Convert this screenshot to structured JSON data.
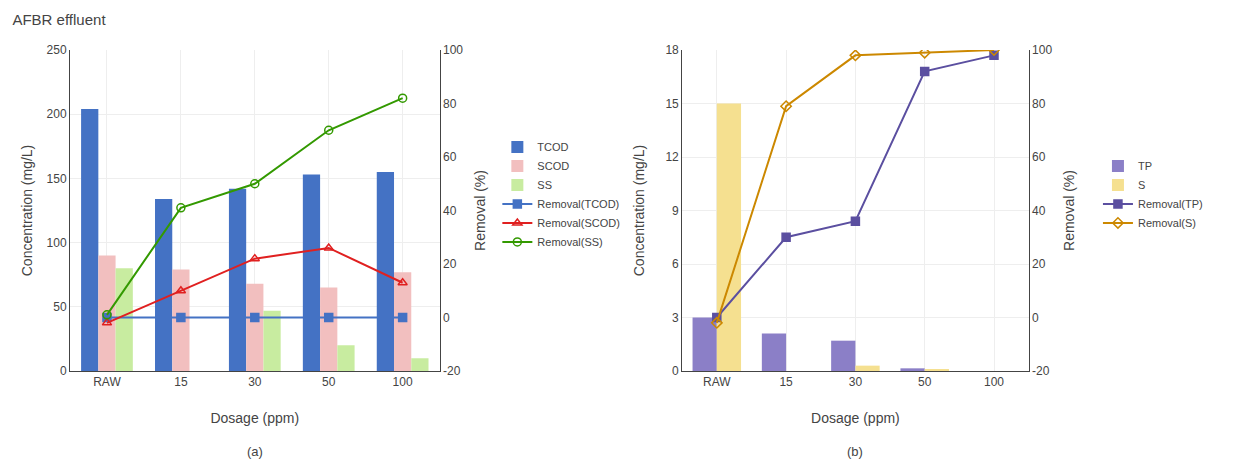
{
  "chart_data": [
    {
      "type": "bar",
      "title": "AFBR effluent",
      "categories": [
        "RAW",
        "15",
        "30",
        "50",
        "100"
      ],
      "xlabel": "Dosage (ppm)",
      "ylabel": "Concentration (mg/L)",
      "y2label": "Removal (%)",
      "ylim": [
        0,
        250
      ],
      "yticks": [
        0,
        50,
        100,
        150,
        200,
        250
      ],
      "y2lim": [
        -20,
        100
      ],
      "y2ticks": [
        -20,
        0,
        20,
        40,
        60,
        80,
        100
      ],
      "grid": true,
      "legend": "right",
      "annotations": [
        "(a)"
      ],
      "series": [
        {
          "name": "TCOD",
          "type": "bar",
          "color": "#4472C4",
          "values": [
            204,
            134,
            142,
            153,
            155
          ]
        },
        {
          "name": "SCOD",
          "type": "bar",
          "color": "#F2BFBF",
          "values": [
            90,
            79,
            68,
            65,
            77
          ]
        },
        {
          "name": "SS",
          "type": "bar",
          "color": "#C8ECA0",
          "values": [
            80,
            0,
            47,
            20,
            10
          ]
        },
        {
          "name": "Removal(TCOD)",
          "type": "line",
          "axis": "y2",
          "color": "#4472C4",
          "marker": "square",
          "values": [
            0,
            0,
            0,
            0,
            0
          ]
        },
        {
          "name": "Removal(SCOD)",
          "type": "line",
          "axis": "y2",
          "color": "#E02020",
          "marker": "triangle-up-open",
          "values": [
            -2,
            10,
            22,
            26,
            13
          ]
        },
        {
          "name": "Removal(SS)",
          "type": "line",
          "axis": "y2",
          "color": "#339900",
          "marker": "circle-open",
          "values": [
            1,
            41,
            50,
            70,
            82
          ]
        }
      ]
    },
    {
      "type": "bar",
      "categories": [
        "RAW",
        "15",
        "30",
        "50",
        "100"
      ],
      "xlabel": "Dosage (ppm)",
      "ylabel": "Concentration (mg/L)",
      "y2label": "Removal (%)",
      "ylim": [
        0,
        18
      ],
      "yticks": [
        0,
        3,
        6,
        9,
        12,
        15,
        18
      ],
      "y2lim": [
        -20,
        100
      ],
      "y2ticks": [
        -20,
        0,
        20,
        40,
        60,
        80,
        100
      ],
      "grid": true,
      "legend": "right",
      "annotations": [
        "(b)"
      ],
      "series": [
        {
          "name": "TP",
          "type": "bar",
          "color": "#8B7FC7",
          "values": [
            3.0,
            2.1,
            1.7,
            0.15,
            0.0
          ]
        },
        {
          "name": "S",
          "type": "bar",
          "color": "#F5E090",
          "values": [
            15.0,
            0.0,
            0.3,
            0.1,
            0.0
          ]
        },
        {
          "name": "Removal(TP)",
          "type": "line",
          "axis": "y2",
          "color": "#5B4FA0",
          "marker": "square",
          "values": [
            0,
            30,
            36,
            92,
            98
          ]
        },
        {
          "name": "Removal(S)",
          "type": "line",
          "axis": "y2",
          "color": "#CC8800",
          "marker": "diamond-open",
          "values": [
            -2,
            79,
            98,
            99,
            100
          ]
        }
      ]
    }
  ]
}
